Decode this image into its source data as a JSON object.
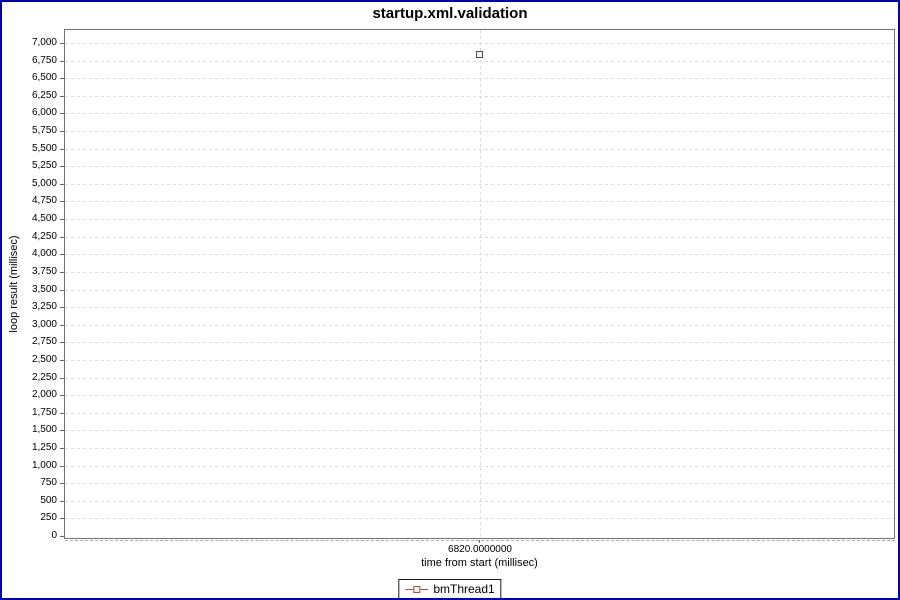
{
  "title": "startup.xml.validation",
  "chart_data": {
    "type": "scatter",
    "title": "startup.xml.validation",
    "xlabel": "time from start (millisec)",
    "ylabel": "loop result (millisec)",
    "ylim": [
      0,
      7000
    ],
    "y_tick_step": 250,
    "y_ticks": [
      "0",
      "250",
      "500",
      "750",
      "1,000",
      "1,250",
      "1,500",
      "1,750",
      "2,000",
      "2,250",
      "2,500",
      "2,750",
      "3,000",
      "3,250",
      "3,500",
      "3,750",
      "4,000",
      "4,250",
      "4,500",
      "4,750",
      "5,000",
      "5,250",
      "5,500",
      "5,750",
      "6,000",
      "6,250",
      "6,500",
      "6,750",
      "7,000"
    ],
    "x_ticks": [
      "6820.0000000"
    ],
    "grid": "dashed",
    "legend_position": "bottom",
    "series": [
      {
        "name": "bmThread1",
        "marker": "open-square",
        "points": [
          {
            "x": 6820.0,
            "y": 6840
          }
        ]
      }
    ]
  },
  "legend": {
    "items": [
      {
        "label": "bmThread1"
      }
    ]
  },
  "colors": {
    "frame_border": "#0000b4",
    "plot_border": "#737373",
    "gridline": "#dcdcdc",
    "tick": "#666666",
    "text": "#000000",
    "series_line": "#9f5555",
    "marker_outline": "#5f4a42",
    "marker_fill": "#eef4ee",
    "background": "#ffffff"
  }
}
